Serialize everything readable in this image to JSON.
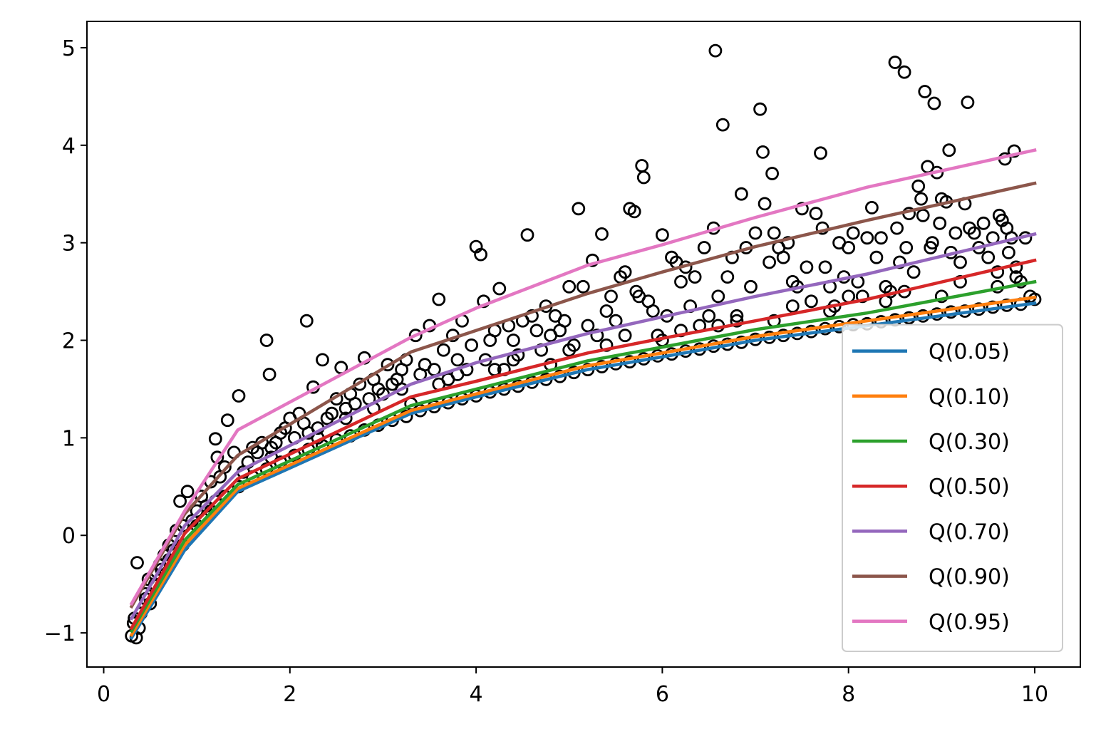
{
  "chart_data": {
    "type": "line",
    "title": "",
    "xlabel": "",
    "ylabel": "",
    "xlim": [
      -0.18,
      10.49
    ],
    "ylim": [
      -1.35,
      5.27
    ],
    "x_ticks": [
      0,
      2,
      4,
      6,
      8,
      10
    ],
    "x_tick_labels": [
      "0",
      "2",
      "4",
      "6",
      "8",
      "10"
    ],
    "y_ticks": [
      -1,
      0,
      1,
      2,
      3,
      4,
      5
    ],
    "y_tick_labels": [
      "−1",
      "0",
      "1",
      "2",
      "3",
      "4",
      "5"
    ],
    "grid": false,
    "legend_location": "lower right",
    "scatter_style": {
      "marker": "open-circle",
      "color": "#000000"
    },
    "scatter_points": [
      [
        0.3,
        -1.03
      ],
      [
        0.32,
        -0.9
      ],
      [
        0.35,
        -1.05
      ],
      [
        0.33,
        -0.85
      ],
      [
        0.38,
        -0.95
      ],
      [
        0.36,
        -0.28
      ],
      [
        0.4,
        -0.8
      ],
      [
        0.45,
        -0.6
      ],
      [
        0.48,
        -0.45
      ],
      [
        0.5,
        -0.7
      ],
      [
        0.55,
        -0.4
      ],
      [
        0.6,
        -0.3
      ],
      [
        0.62,
        -0.35
      ],
      [
        0.65,
        -0.2
      ],
      [
        0.7,
        -0.1
      ],
      [
        0.75,
        -0.15
      ],
      [
        0.78,
        0.05
      ],
      [
        0.82,
        0.35
      ],
      [
        0.85,
        0.1
      ],
      [
        0.9,
        0.45
      ],
      [
        0.95,
        0.15
      ],
      [
        1.0,
        0.25
      ],
      [
        1.05,
        0.4
      ],
      [
        1.1,
        0.3
      ],
      [
        1.15,
        0.55
      ],
      [
        1.2,
        0.99
      ],
      [
        1.22,
        0.8
      ],
      [
        1.25,
        0.6
      ],
      [
        1.3,
        0.7
      ],
      [
        1.33,
        1.18
      ],
      [
        1.4,
        0.85
      ],
      [
        1.45,
        1.43
      ],
      [
        1.5,
        0.65
      ],
      [
        1.55,
        0.75
      ],
      [
        1.6,
        0.9
      ],
      [
        1.65,
        0.85
      ],
      [
        1.7,
        0.95
      ],
      [
        1.75,
        2.0
      ],
      [
        1.78,
        1.65
      ],
      [
        1.8,
        0.8
      ],
      [
        1.85,
        0.95
      ],
      [
        1.9,
        1.05
      ],
      [
        1.95,
        1.1
      ],
      [
        2.0,
        1.2
      ],
      [
        2.05,
        1.0
      ],
      [
        2.1,
        1.25
      ],
      [
        2.15,
        1.15
      ],
      [
        2.18,
        2.2
      ],
      [
        2.2,
        1.05
      ],
      [
        2.25,
        1.52
      ],
      [
        2.3,
        1.1
      ],
      [
        2.35,
        1.8
      ],
      [
        2.4,
        1.2
      ],
      [
        2.45,
        1.25
      ],
      [
        2.5,
        1.4
      ],
      [
        2.55,
        1.72
      ],
      [
        2.6,
        1.3
      ],
      [
        2.65,
        1.45
      ],
      [
        2.7,
        1.35
      ],
      [
        2.75,
        1.55
      ],
      [
        2.8,
        1.82
      ],
      [
        2.85,
        1.4
      ],
      [
        2.9,
        1.6
      ],
      [
        2.95,
        1.5
      ],
      [
        3.0,
        1.45
      ],
      [
        3.05,
        1.75
      ],
      [
        3.1,
        1.55
      ],
      [
        3.15,
        1.6
      ],
      [
        3.2,
        1.7
      ],
      [
        3.25,
        1.8
      ],
      [
        3.3,
        1.35
      ],
      [
        3.35,
        2.05
      ],
      [
        3.4,
        1.65
      ],
      [
        3.45,
        1.75
      ],
      [
        3.5,
        2.15
      ],
      [
        3.55,
        1.7
      ],
      [
        3.6,
        2.42
      ],
      [
        3.65,
        1.9
      ],
      [
        3.7,
        1.6
      ],
      [
        3.75,
        2.05
      ],
      [
        3.8,
        1.8
      ],
      [
        3.85,
        2.2
      ],
      [
        3.9,
        1.7
      ],
      [
        3.95,
        1.95
      ],
      [
        4.0,
        2.96
      ],
      [
        4.05,
        2.88
      ],
      [
        4.08,
        2.4
      ],
      [
        4.1,
        1.8
      ],
      [
        4.15,
        2.0
      ],
      [
        4.2,
        2.1
      ],
      [
        4.25,
        2.53
      ],
      [
        4.3,
        1.7
      ],
      [
        4.35,
        2.15
      ],
      [
        4.4,
        2.0
      ],
      [
        4.45,
        1.85
      ],
      [
        4.5,
        2.2
      ],
      [
        4.55,
        3.08
      ],
      [
        4.6,
        2.25
      ],
      [
        4.65,
        2.1
      ],
      [
        4.7,
        1.9
      ],
      [
        4.75,
        2.35
      ],
      [
        4.8,
        2.05
      ],
      [
        4.85,
        2.25
      ],
      [
        4.9,
        2.1
      ],
      [
        4.95,
        2.2
      ],
      [
        5.0,
        2.55
      ],
      [
        5.05,
        1.95
      ],
      [
        5.1,
        3.35
      ],
      [
        5.15,
        2.55
      ],
      [
        5.2,
        2.15
      ],
      [
        5.25,
        2.82
      ],
      [
        5.3,
        2.05
      ],
      [
        5.35,
        3.09
      ],
      [
        5.4,
        2.3
      ],
      [
        5.45,
        2.45
      ],
      [
        5.5,
        2.2
      ],
      [
        5.55,
        2.65
      ],
      [
        5.6,
        2.7
      ],
      [
        5.65,
        3.35
      ],
      [
        5.7,
        3.32
      ],
      [
        5.72,
        2.5
      ],
      [
        5.75,
        2.45
      ],
      [
        5.78,
        3.79
      ],
      [
        5.8,
        3.67
      ],
      [
        5.85,
        2.4
      ],
      [
        5.9,
        2.3
      ],
      [
        5.95,
        2.05
      ],
      [
        6.0,
        3.08
      ],
      [
        6.05,
        2.25
      ],
      [
        6.1,
        2.85
      ],
      [
        6.15,
        2.8
      ],
      [
        6.2,
        2.6
      ],
      [
        6.25,
        2.75
      ],
      [
        6.3,
        2.35
      ],
      [
        6.35,
        2.65
      ],
      [
        6.4,
        2.15
      ],
      [
        6.45,
        2.95
      ],
      [
        6.5,
        2.25
      ],
      [
        6.55,
        3.15
      ],
      [
        6.57,
        4.97
      ],
      [
        6.6,
        2.45
      ],
      [
        6.65,
        4.21
      ],
      [
        6.7,
        2.65
      ],
      [
        6.75,
        2.85
      ],
      [
        6.8,
        2.2
      ],
      [
        6.85,
        3.5
      ],
      [
        6.9,
        2.95
      ],
      [
        6.95,
        2.55
      ],
      [
        7.0,
        3.1
      ],
      [
        7.05,
        4.37
      ],
      [
        7.08,
        3.93
      ],
      [
        7.1,
        3.4
      ],
      [
        7.15,
        2.8
      ],
      [
        7.18,
        3.71
      ],
      [
        7.2,
        3.1
      ],
      [
        7.25,
        2.95
      ],
      [
        7.3,
        2.85
      ],
      [
        7.35,
        3.0
      ],
      [
        7.4,
        2.6
      ],
      [
        7.45,
        2.55
      ],
      [
        7.5,
        3.35
      ],
      [
        7.55,
        2.75
      ],
      [
        7.6,
        2.4
      ],
      [
        7.65,
        3.3
      ],
      [
        7.7,
        3.92
      ],
      [
        7.72,
        3.15
      ],
      [
        7.75,
        2.75
      ],
      [
        7.8,
        2.55
      ],
      [
        7.85,
        2.35
      ],
      [
        7.9,
        3.0
      ],
      [
        7.95,
        2.65
      ],
      [
        8.0,
        2.95
      ],
      [
        8.05,
        3.1
      ],
      [
        8.1,
        2.6
      ],
      [
        8.15,
        2.45
      ],
      [
        8.2,
        3.05
      ],
      [
        8.25,
        3.36
      ],
      [
        8.3,
        2.85
      ],
      [
        8.35,
        3.05
      ],
      [
        8.4,
        2.55
      ],
      [
        8.45,
        2.5
      ],
      [
        8.5,
        4.85
      ],
      [
        8.52,
        3.15
      ],
      [
        8.55,
        2.8
      ],
      [
        8.6,
        4.75
      ],
      [
        8.62,
        2.95
      ],
      [
        8.65,
        3.3
      ],
      [
        8.7,
        2.7
      ],
      [
        8.75,
        3.58
      ],
      [
        8.78,
        3.45
      ],
      [
        8.8,
        3.28
      ],
      [
        8.82,
        4.55
      ],
      [
        8.85,
        3.78
      ],
      [
        8.88,
        2.95
      ],
      [
        8.9,
        3.0
      ],
      [
        8.92,
        4.43
      ],
      [
        8.95,
        3.72
      ],
      [
        8.98,
        3.2
      ],
      [
        9.0,
        3.45
      ],
      [
        9.05,
        3.42
      ],
      [
        9.08,
        3.95
      ],
      [
        9.1,
        2.9
      ],
      [
        9.15,
        3.1
      ],
      [
        9.2,
        2.8
      ],
      [
        9.25,
        3.4
      ],
      [
        9.28,
        4.44
      ],
      [
        9.3,
        3.15
      ],
      [
        9.35,
        3.1
      ],
      [
        9.4,
        2.95
      ],
      [
        9.45,
        3.2
      ],
      [
        9.5,
        2.85
      ],
      [
        9.55,
        3.05
      ],
      [
        9.6,
        2.7
      ],
      [
        9.62,
        3.28
      ],
      [
        9.65,
        3.23
      ],
      [
        9.68,
        3.86
      ],
      [
        9.7,
        3.15
      ],
      [
        9.72,
        2.9
      ],
      [
        9.75,
        3.05
      ],
      [
        9.78,
        3.94
      ],
      [
        9.8,
        2.75
      ],
      [
        9.85,
        2.6
      ],
      [
        9.9,
        3.05
      ],
      [
        9.95,
        2.45
      ],
      [
        10.0,
        2.42
      ],
      [
        0.45,
        -0.65
      ],
      [
        0.55,
        -0.5
      ],
      [
        0.7,
        -0.25
      ],
      [
        0.85,
        -0.1
      ],
      [
        1.0,
        0.1
      ],
      [
        1.15,
        0.25
      ],
      [
        1.3,
        0.4
      ],
      [
        1.45,
        0.5
      ],
      [
        1.6,
        0.6
      ],
      [
        1.75,
        0.68
      ],
      [
        1.9,
        0.75
      ],
      [
        2.05,
        0.82
      ],
      [
        2.2,
        0.88
      ],
      [
        2.35,
        0.92
      ],
      [
        2.5,
        0.98
      ],
      [
        2.65,
        1.02
      ],
      [
        2.8,
        1.08
      ],
      [
        2.95,
        1.13
      ],
      [
        3.1,
        1.18
      ],
      [
        3.25,
        1.22
      ],
      [
        3.4,
        1.28
      ],
      [
        3.55,
        1.32
      ],
      [
        3.7,
        1.36
      ],
      [
        3.85,
        1.4
      ],
      [
        4.0,
        1.43
      ],
      [
        4.15,
        1.47
      ],
      [
        4.3,
        1.5
      ],
      [
        4.45,
        1.53
      ],
      [
        4.6,
        1.57
      ],
      [
        4.75,
        1.6
      ],
      [
        4.9,
        1.63
      ],
      [
        5.05,
        1.67
      ],
      [
        5.2,
        1.7
      ],
      [
        5.35,
        1.73
      ],
      [
        5.5,
        1.76
      ],
      [
        5.65,
        1.78
      ],
      [
        5.8,
        1.81
      ],
      [
        5.95,
        1.84
      ],
      [
        6.1,
        1.86
      ],
      [
        6.25,
        1.89
      ],
      [
        6.4,
        1.91
      ],
      [
        6.55,
        1.94
      ],
      [
        6.7,
        1.96
      ],
      [
        6.85,
        1.98
      ],
      [
        7.0,
        2.01
      ],
      [
        7.15,
        2.03
      ],
      [
        7.3,
        2.05
      ],
      [
        7.45,
        2.07
      ],
      [
        7.6,
        2.09
      ],
      [
        7.75,
        2.12
      ],
      [
        7.9,
        2.14
      ],
      [
        8.05,
        2.16
      ],
      [
        8.2,
        2.17
      ],
      [
        8.35,
        2.19
      ],
      [
        8.5,
        2.21
      ],
      [
        8.65,
        2.23
      ],
      [
        8.8,
        2.25
      ],
      [
        8.95,
        2.27
      ],
      [
        9.1,
        2.29
      ],
      [
        9.25,
        2.3
      ],
      [
        9.4,
        2.32
      ],
      [
        9.55,
        2.34
      ],
      [
        9.7,
        2.36
      ],
      [
        9.85,
        2.37
      ],
      [
        1.2,
        0.35
      ],
      [
        1.8,
        0.9
      ],
      [
        2.6,
        1.2
      ],
      [
        3.2,
        1.5
      ],
      [
        3.8,
        1.65
      ],
      [
        4.4,
        1.8
      ],
      [
        5.0,
        1.9
      ],
      [
        5.6,
        2.05
      ],
      [
        6.2,
        2.1
      ],
      [
        6.8,
        2.25
      ],
      [
        7.4,
        2.35
      ],
      [
        8.0,
        2.45
      ],
      [
        8.6,
        2.5
      ],
      [
        9.2,
        2.6
      ],
      [
        9.8,
        2.65
      ],
      [
        2.3,
        1.0
      ],
      [
        3.6,
        1.55
      ],
      [
        4.8,
        1.75
      ],
      [
        6.0,
        2.0
      ],
      [
        7.2,
        2.2
      ],
      [
        8.4,
        2.4
      ],
      [
        9.6,
        2.55
      ],
      [
        2.9,
        1.3
      ],
      [
        4.2,
        1.7
      ],
      [
        5.4,
        1.95
      ],
      [
        6.6,
        2.15
      ],
      [
        7.8,
        2.3
      ],
      [
        9.0,
        2.45
      ]
    ],
    "series": [
      {
        "name": "Q(0.05)",
        "color": "#1f77b4",
        "x": [
          0.3,
          0.87,
          1.44,
          3.3,
          4.0,
          5.2,
          6.0,
          7.0,
          8.2,
          10.0
        ],
        "y": [
          -1.05,
          -0.15,
          0.45,
          1.25,
          1.42,
          1.7,
          1.83,
          2.0,
          2.15,
          2.38
        ]
      },
      {
        "name": "Q(0.10)",
        "color": "#ff7f0e",
        "x": [
          0.3,
          0.87,
          1.44,
          3.3,
          4.0,
          5.2,
          6.0,
          7.0,
          8.2,
          10.0
        ],
        "y": [
          -1.02,
          -0.1,
          0.48,
          1.28,
          1.45,
          1.74,
          1.87,
          2.04,
          2.2,
          2.44
        ]
      },
      {
        "name": "Q(0.30)",
        "color": "#2ca02c",
        "x": [
          0.3,
          0.87,
          1.44,
          3.3,
          4.0,
          5.2,
          6.0,
          7.0,
          8.2,
          10.0
        ],
        "y": [
          -0.98,
          -0.05,
          0.52,
          1.33,
          1.5,
          1.79,
          1.93,
          2.11,
          2.28,
          2.6
        ]
      },
      {
        "name": "Q(0.50)",
        "color": "#d62728",
        "x": [
          0.3,
          0.87,
          1.44,
          3.3,
          4.0,
          5.2,
          6.0,
          7.0,
          8.2,
          10.0
        ],
        "y": [
          -0.95,
          0.02,
          0.58,
          1.42,
          1.58,
          1.87,
          2.02,
          2.2,
          2.42,
          2.82
        ]
      },
      {
        "name": "Q(0.70)",
        "color": "#9467bd",
        "x": [
          0.3,
          0.87,
          1.44,
          3.3,
          4.0,
          5.2,
          6.0,
          7.0,
          8.2,
          10.0
        ],
        "y": [
          -0.85,
          0.1,
          0.65,
          1.55,
          1.77,
          2.07,
          2.24,
          2.45,
          2.68,
          3.09
        ]
      },
      {
        "name": "Q(0.90)",
        "color": "#8c564b",
        "x": [
          0.3,
          0.87,
          1.44,
          3.3,
          4.0,
          5.2,
          6.0,
          7.0,
          8.2,
          10.0
        ],
        "y": [
          -0.73,
          0.22,
          0.82,
          1.88,
          2.1,
          2.48,
          2.7,
          2.96,
          3.23,
          3.61
        ]
      },
      {
        "name": "Q(0.95)",
        "color": "#e377c2",
        "x": [
          0.3,
          0.87,
          1.44,
          3.3,
          4.0,
          5.2,
          6.0,
          7.0,
          8.2,
          10.0
        ],
        "y": [
          -0.7,
          0.25,
          1.08,
          2.03,
          2.33,
          2.77,
          2.98,
          3.26,
          3.57,
          3.95
        ]
      }
    ]
  }
}
